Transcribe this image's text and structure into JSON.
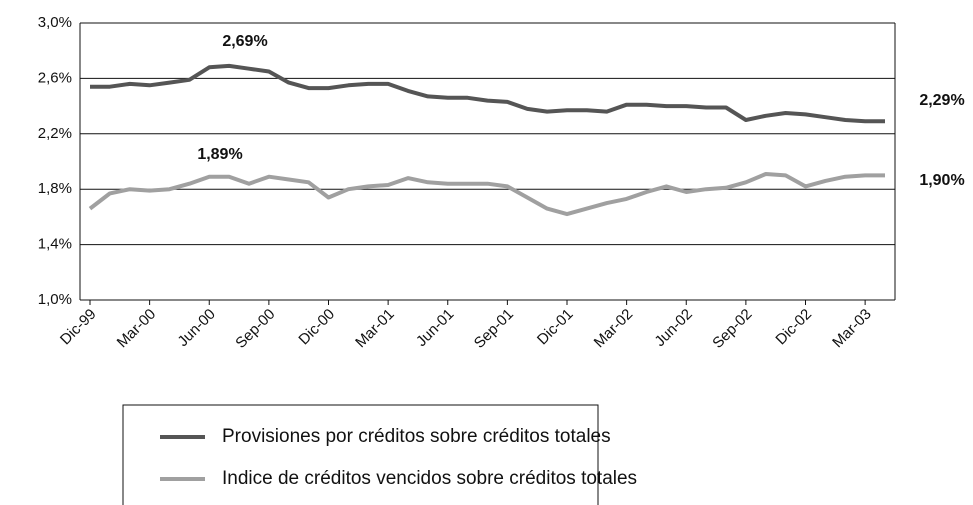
{
  "chart_data": {
    "type": "line",
    "categories": [
      "Dic-99",
      null,
      null,
      "Mar-00",
      null,
      null,
      "Jun-00",
      null,
      null,
      "Sep-00",
      null,
      null,
      "Dic-00",
      null,
      null,
      "Mar-01",
      null,
      null,
      "Jun-01",
      null,
      null,
      "Sep-01",
      null,
      null,
      "Dic-01",
      null,
      null,
      "Mar-02",
      null,
      null,
      "Jun-02",
      null,
      null,
      "Sep-02",
      null,
      null,
      "Dic-02",
      null,
      null,
      "Mar-03",
      null
    ],
    "series": [
      {
        "name": "Provisiones por créditos sobre créditos totales",
        "color": "#555555",
        "values": [
          2.54,
          2.54,
          2.56,
          2.55,
          2.57,
          2.59,
          2.68,
          2.69,
          2.67,
          2.65,
          2.57,
          2.53,
          2.53,
          2.55,
          2.56,
          2.56,
          2.51,
          2.47,
          2.46,
          2.46,
          2.44,
          2.43,
          2.38,
          2.36,
          2.37,
          2.37,
          2.36,
          2.41,
          2.41,
          2.4,
          2.4,
          2.39,
          2.39,
          2.3,
          2.33,
          2.35,
          2.34,
          2.32,
          2.3,
          2.29,
          2.29
        ]
      },
      {
        "name": "Indice de créditos vencidos sobre créditos totales",
        "color": "#a0a0a0",
        "values": [
          1.66,
          1.77,
          1.8,
          1.79,
          1.8,
          1.84,
          1.89,
          1.89,
          1.84,
          1.89,
          1.87,
          1.85,
          1.74,
          1.8,
          1.82,
          1.83,
          1.88,
          1.85,
          1.84,
          1.84,
          1.84,
          1.82,
          1.74,
          1.66,
          1.62,
          1.66,
          1.7,
          1.73,
          1.78,
          1.82,
          1.78,
          1.8,
          1.81,
          1.85,
          1.91,
          1.9,
          1.82,
          1.86,
          1.89,
          1.9,
          1.9
        ]
      }
    ],
    "ylim": [
      1.0,
      3.0
    ],
    "yticks": [
      {
        "value": 1.0,
        "label": "1,0%"
      },
      {
        "value": 1.4,
        "label": "1,4%"
      },
      {
        "value": 1.8,
        "label": "1,8%"
      },
      {
        "value": 2.2,
        "label": "2,2%"
      },
      {
        "value": 2.6,
        "label": "2,6%"
      },
      {
        "value": 3.0,
        "label": "3,0%"
      }
    ],
    "grid": true,
    "annotations": [
      "2,69%",
      "1,89%",
      "2,29%",
      "1,90%"
    ]
  }
}
